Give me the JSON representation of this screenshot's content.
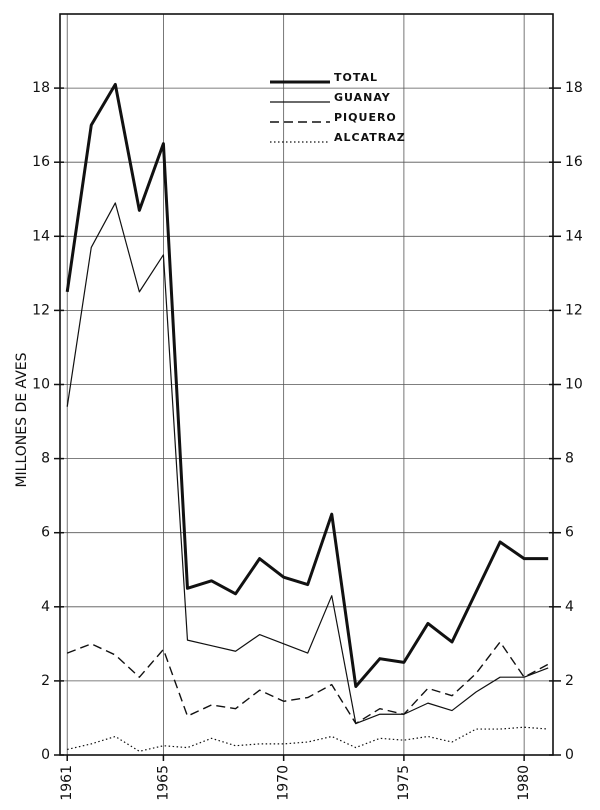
{
  "chart_data": {
    "type": "line",
    "y_label": "MILLONES DE AVES",
    "x": [
      1961,
      1962,
      1963,
      1964,
      1965,
      1966,
      1967,
      1968,
      1969,
      1970,
      1971,
      1972,
      1973,
      1974,
      1975,
      1976,
      1977,
      1978,
      1979,
      1980,
      1981
    ],
    "series": [
      {
        "name": "TOTAL",
        "color": "#111111",
        "style": "solid",
        "width": 3,
        "values": [
          12.5,
          17,
          18.1,
          14.7,
          16.5,
          4.5,
          4.7,
          4.35,
          5.3,
          4.8,
          4.6,
          6.5,
          1.85,
          2.6,
          2.5,
          3.55,
          3.05,
          4.4,
          5.75,
          5.3,
          5.3
        ]
      },
      {
        "name": "GUANAY",
        "color": "#111111",
        "style": "solid",
        "width": 1.2,
        "values": [
          9.4,
          13.7,
          14.9,
          12.5,
          13.5,
          3.1,
          2.95,
          2.8,
          3.25,
          3.0,
          2.75,
          4.3,
          0.85,
          1.1,
          1.1,
          1.4,
          1.2,
          1.7,
          2.1,
          2.1,
          2.35
        ]
      },
      {
        "name": "PIQUERO",
        "color": "#111111",
        "style": "dashed",
        "width": 1.4,
        "values": [
          2.75,
          3.0,
          2.7,
          2.1,
          2.85,
          1.05,
          1.35,
          1.25,
          1.75,
          1.45,
          1.55,
          1.9,
          0.85,
          1.25,
          1.1,
          1.8,
          1.6,
          2.2,
          3.05,
          2.1,
          2.45
        ]
      },
      {
        "name": "ALCATRAZ",
        "color": "#111111",
        "style": "dotted",
        "width": 1.2,
        "values": [
          0.15,
          0.3,
          0.5,
          0.1,
          0.25,
          0.2,
          0.45,
          0.25,
          0.3,
          0.3,
          0.35,
          0.5,
          0.2,
          0.45,
          0.4,
          0.5,
          0.35,
          0.7,
          0.7,
          0.75,
          0.7
        ]
      }
    ],
    "xlim": [
      1960.7,
      1981.2
    ],
    "xticks": [
      1961,
      1965,
      1970,
      1975,
      1980
    ],
    "ylim": [
      0,
      20
    ],
    "yticks": [
      0,
      2,
      4,
      6,
      8,
      10,
      12,
      14,
      16,
      18
    ],
    "y2lim": [
      0,
      20
    ],
    "y2ticks": [
      0,
      2,
      4,
      6,
      8,
      10,
      12,
      14,
      16,
      18
    ],
    "grid": true,
    "legend": "upper center"
  }
}
